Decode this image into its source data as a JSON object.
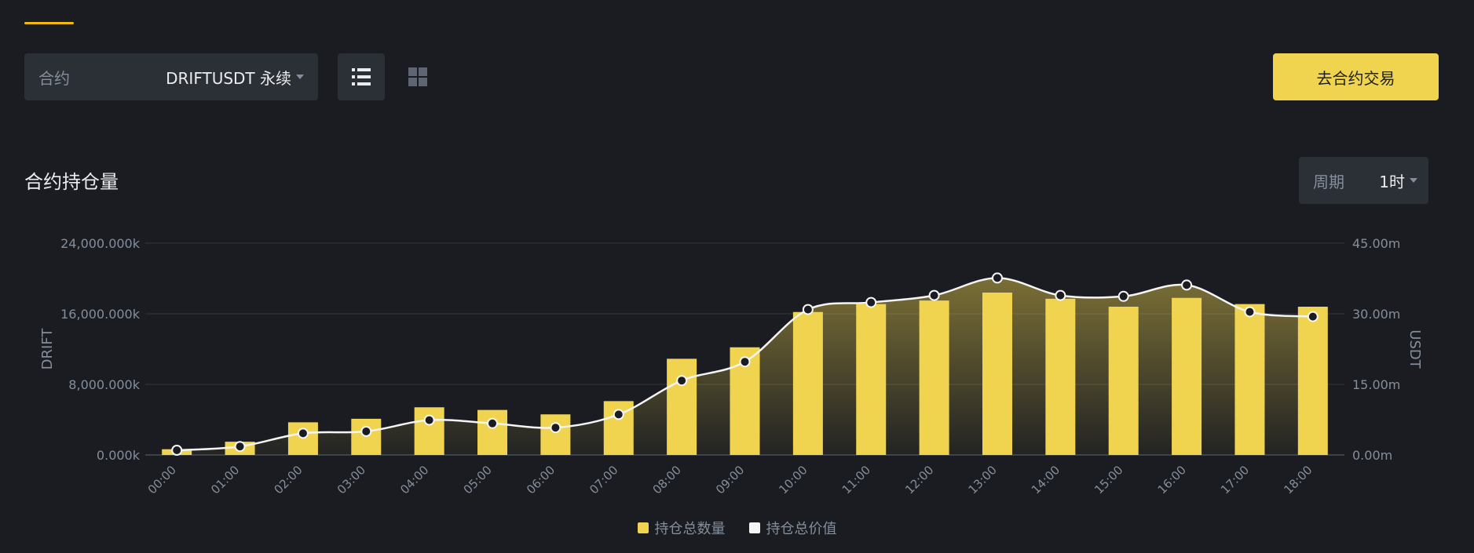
{
  "controls": {
    "contract_label": "合约",
    "contract_value": "DRIFTUSDT 永续",
    "trade_button": "去合约交易",
    "section_title": "合约持仓量",
    "period_label": "周期",
    "period_value": "1时"
  },
  "colors": {
    "bar": "#f0d44f",
    "line": "#f5f5f5",
    "accent": "#f0b90b",
    "background": "#1a1c21"
  },
  "icons": {
    "list_view": "list-icon",
    "grid_view": "grid-icon"
  },
  "chart_data": {
    "type": "bar+line",
    "categories": [
      "00:00",
      "01:00",
      "02:00",
      "03:00",
      "04:00",
      "05:00",
      "06:00",
      "07:00",
      "08:00",
      "09:00",
      "10:00",
      "11:00",
      "12:00",
      "13:00",
      "14:00",
      "15:00",
      "16:00",
      "17:00",
      "18:00"
    ],
    "series": [
      {
        "name": "持仓总数量",
        "type": "bar",
        "axis": "left",
        "values": [
          650,
          1500,
          3700,
          4100,
          5400,
          5100,
          4600,
          6100,
          10900,
          12200,
          16200,
          17100,
          17500,
          18400,
          17700,
          16800,
          17800,
          17100,
          16800
        ]
      },
      {
        "name": "持仓总价值",
        "type": "line",
        "axis": "right",
        "values": [
          1.0,
          1.8,
          4.6,
          5.0,
          7.4,
          6.7,
          5.8,
          8.6,
          15.8,
          19.8,
          30.9,
          32.4,
          33.9,
          37.6,
          33.9,
          33.7,
          36.1,
          30.4,
          29.4
        ]
      }
    ],
    "ylabel_left": "DRIFT",
    "ylabel_right": "USDT",
    "ylim_left": [
      0,
      24000
    ],
    "ylim_right": [
      0,
      45
    ],
    "yticks_left": [
      "0.000k",
      "8,000.000k",
      "16,000.000k",
      "24,000.000k"
    ],
    "yticks_right": [
      "0.00m",
      "15.00m",
      "30.00m",
      "45.00m"
    ],
    "grid": true,
    "legend_position": "bottom-center"
  }
}
